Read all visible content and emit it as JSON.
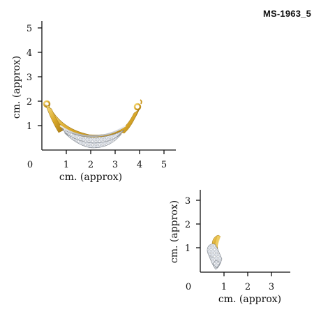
{
  "product_code": "MS-1963_5",
  "colors": {
    "axis": "#111111",
    "gold": "#d9a82a",
    "gold_light": "#f3d36b",
    "silver": "#c9ccd2",
    "diamond": "#eef1f5"
  },
  "views": {
    "front": {
      "origin_label": "0",
      "x_ticks": [
        "1",
        "2",
        "3",
        "4",
        "5"
      ],
      "y_ticks": [
        "1",
        "2",
        "3",
        "4",
        "5"
      ],
      "x_label": "cm. (approx)",
      "y_label": "cm. (approx)",
      "image": "mangalsutra-pendant-front-image"
    },
    "side": {
      "origin_label": "0",
      "x_ticks": [
        "1",
        "2",
        "3"
      ],
      "y_ticks": [
        "1",
        "2",
        "3"
      ],
      "x_label": "cm. (approx)",
      "y_label": "cm. (approx)",
      "image": "mangalsutra-pendant-side-image"
    }
  }
}
